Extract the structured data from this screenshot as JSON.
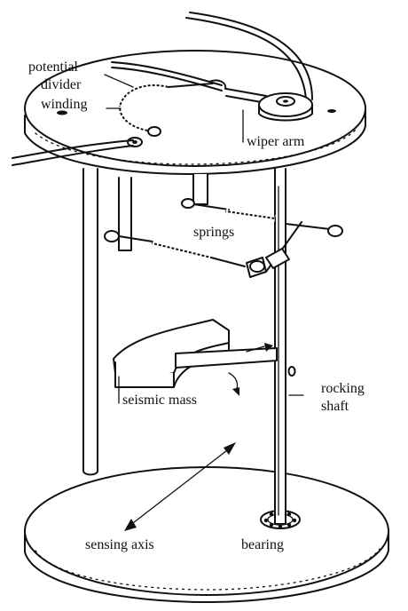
{
  "labels": {
    "potential": "potential",
    "divider": "divider",
    "winding": "winding",
    "wiper_arm": "wiper arm",
    "springs": "springs",
    "seismic_mass": "seismic mass",
    "rocking": "rocking",
    "shaft": "shaft",
    "sensing_axis": "sensing axis",
    "bearing": "bearing"
  },
  "colors": {
    "ink": "#111111",
    "paper": "#ffffff"
  }
}
